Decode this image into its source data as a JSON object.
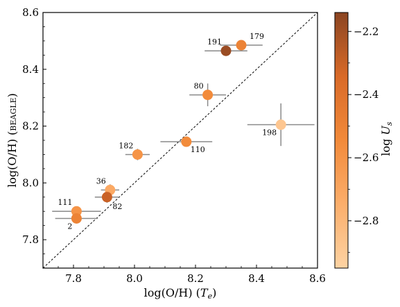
{
  "chart_data": {
    "type": "scatter",
    "xlabel_main": "log(O/H) (",
    "xlabel_italic": "T",
    "xlabel_sub": "e",
    "xlabel_close": ")",
    "ylabel_main": "log(O/H) (",
    "ylabel_smallcaps": "beagle",
    "ylabel_close": ")",
    "xlim": [
      7.7,
      8.6
    ],
    "ylim": [
      7.7,
      8.6
    ],
    "x_ticks": [
      7.8,
      8.0,
      8.2,
      8.4,
      8.6
    ],
    "x_tick_labels": [
      "7.8",
      "8.0",
      "8.2",
      "8.4",
      "8.6"
    ],
    "y_ticks": [
      7.8,
      8.0,
      8.2,
      8.4,
      8.6
    ],
    "y_tick_labels": [
      "7.8",
      "8.0",
      "8.2",
      "8.4",
      "8.6"
    ],
    "one_to_one_line": true,
    "grid": false,
    "colorbar": {
      "label_main": "log ",
      "label_italic": "U",
      "label_sub": "s",
      "range": [
        -2.95,
        -2.14
      ],
      "ticks": [
        -2.2,
        -2.4,
        -2.6,
        -2.8
      ],
      "tick_labels": [
        "−2.2",
        "−2.4",
        "−2.6",
        "−2.8"
      ],
      "colormap": "Oranges",
      "color_low": "#fdd3a3",
      "color_high": "#8b4522"
    },
    "errorbar_color": "#8a8a8a",
    "points": [
      {
        "id": "179",
        "x": 8.35,
        "y": 8.485,
        "xerr": 0.07,
        "yerr": 0.0,
        "logU": -2.5
      },
      {
        "id": "191",
        "x": 8.3,
        "y": 8.465,
        "xerr": 0.07,
        "yerr": 0.0,
        "logU": -2.18
      },
      {
        "id": "80",
        "x": 8.24,
        "y": 8.31,
        "xerr": 0.06,
        "yerr": 0.04,
        "logU": -2.55
      },
      {
        "id": "198",
        "x": 8.48,
        "y": 8.205,
        "xerr": 0.11,
        "yerr": 0.075,
        "logU": -2.88
      },
      {
        "id": "110",
        "x": 8.17,
        "y": 8.145,
        "xerr": 0.085,
        "yerr": 0.0,
        "logU": -2.55
      },
      {
        "id": "182",
        "x": 8.01,
        "y": 8.1,
        "xerr": 0.04,
        "yerr": 0.02,
        "logU": -2.6
      },
      {
        "id": "36",
        "x": 7.92,
        "y": 7.975,
        "xerr": 0.03,
        "yerr": 0.02,
        "logU": -2.72
      },
      {
        "id": "82",
        "x": 7.91,
        "y": 7.95,
        "xerr": 0.04,
        "yerr": 0.02,
        "logU": -2.3
      },
      {
        "id": "111",
        "x": 7.81,
        "y": 7.9,
        "xerr": 0.08,
        "yerr": 0.0,
        "logU": -2.6
      },
      {
        "id": "2",
        "x": 7.81,
        "y": 7.875,
        "xerr": 0.07,
        "yerr": 0.0,
        "logU": -2.5
      }
    ]
  }
}
